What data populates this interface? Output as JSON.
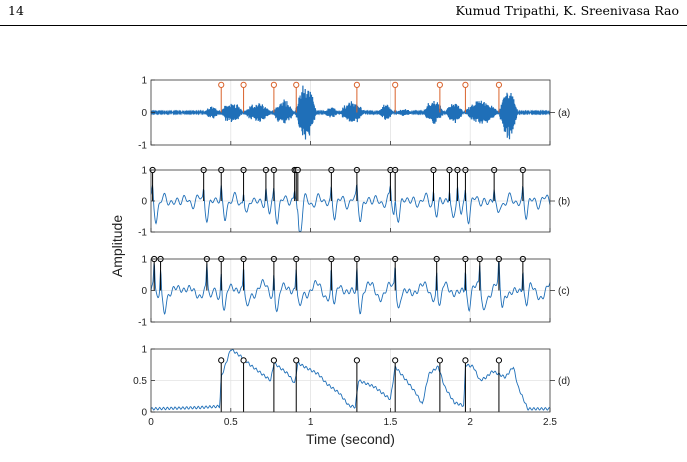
{
  "header": {
    "page_number": "14",
    "authors": "Kumud Tripathi, K. Sreenivasa Rao"
  },
  "chart_data": {
    "type": "line",
    "xlabel": "Time (second)",
    "ylabel": "Amplitude",
    "xlim": [
      0,
      2.5
    ],
    "xticks": [
      "0",
      "0.5",
      "1",
      "1.5",
      "2",
      "2.5"
    ],
    "grid": true,
    "colors": {
      "signal": "#1f6fb8",
      "marker_a": "#d9622b",
      "marker": "#000000"
    },
    "panels": [
      {
        "label": "(a)",
        "ylim": [
          -1,
          1
        ],
        "yticks": [
          "1",
          "0",
          "-1"
        ],
        "markers": [
          0.44,
          0.58,
          0.77,
          0.91,
          1.29,
          1.53,
          1.81,
          1.97,
          2.18
        ],
        "marker_height": 0.85,
        "segments": [
          {
            "start": 0.33,
            "end": 0.43,
            "amp": 0.22
          },
          {
            "start": 0.43,
            "end": 0.58,
            "amp": 0.38
          },
          {
            "start": 0.58,
            "end": 0.76,
            "amp": 0.33
          },
          {
            "start": 0.76,
            "end": 0.9,
            "amp": 0.42
          },
          {
            "start": 0.9,
            "end": 1.04,
            "amp": 0.95
          },
          {
            "start": 1.08,
            "end": 1.18,
            "amp": 0.18
          },
          {
            "start": 1.18,
            "end": 1.34,
            "amp": 0.4
          },
          {
            "start": 1.42,
            "end": 1.52,
            "amp": 0.28
          },
          {
            "start": 1.53,
            "end": 1.64,
            "amp": 0.12
          },
          {
            "start": 1.7,
            "end": 1.84,
            "amp": 0.42
          },
          {
            "start": 1.84,
            "end": 1.96,
            "amp": 0.35
          },
          {
            "start": 1.96,
            "end": 2.18,
            "amp": 0.42
          },
          {
            "start": 2.18,
            "end": 2.3,
            "amp": 0.9
          }
        ]
      },
      {
        "label": "(b)",
        "ylim": [
          -1,
          1
        ],
        "yticks": [
          "1",
          "0",
          "-1"
        ],
        "markers": [
          0.01,
          0.33,
          0.44,
          0.58,
          0.72,
          0.77,
          0.9,
          0.91,
          0.92,
          1.13,
          1.29,
          1.5,
          1.53,
          1.77,
          1.87,
          1.92,
          1.97,
          2.15,
          2.33
        ],
        "marker_height": 1
      },
      {
        "label": "(c)",
        "ylim": [
          -1,
          1
        ],
        "yticks": [
          "1",
          "0",
          "-1"
        ],
        "markers": [
          0.02,
          0.06,
          0.35,
          0.44,
          0.58,
          0.77,
          0.91,
          1.13,
          1.29,
          1.53,
          1.79,
          1.97,
          2.06,
          2.18,
          2.33
        ],
        "marker_height": 1
      },
      {
        "label": "(d)",
        "ylim": [
          0,
          1
        ],
        "yticks": [
          "1",
          "0.5",
          "0"
        ],
        "markers": [
          0.44,
          0.58,
          0.77,
          0.91,
          1.29,
          1.53,
          1.81,
          1.97,
          2.18
        ],
        "marker_height": 0.82,
        "envelope_t": [
          0,
          0.3,
          0.43,
          0.44,
          0.5,
          0.58,
          0.62,
          0.75,
          0.77,
          0.86,
          0.9,
          0.92,
          0.96,
          1.05,
          1.1,
          1.18,
          1.24,
          1.28,
          1.3,
          1.4,
          1.5,
          1.53,
          1.6,
          1.66,
          1.7,
          1.74,
          1.8,
          1.84,
          1.9,
          1.96,
          1.97,
          2.02,
          2.06,
          2.1,
          2.14,
          2.18,
          2.22,
          2.27,
          2.3,
          2.36,
          2.5
        ],
        "envelope_v": [
          0.05,
          0.07,
          0.09,
          0.55,
          1.0,
          0.85,
          0.75,
          0.5,
          0.78,
          0.6,
          0.45,
          0.78,
          0.72,
          0.6,
          0.45,
          0.3,
          0.1,
          0.08,
          0.5,
          0.4,
          0.2,
          0.72,
          0.5,
          0.3,
          0.12,
          0.6,
          0.72,
          0.4,
          0.15,
          0.1,
          0.75,
          0.72,
          0.5,
          0.55,
          0.65,
          0.6,
          0.55,
          0.72,
          0.4,
          0.05,
          0.05
        ]
      }
    ]
  }
}
